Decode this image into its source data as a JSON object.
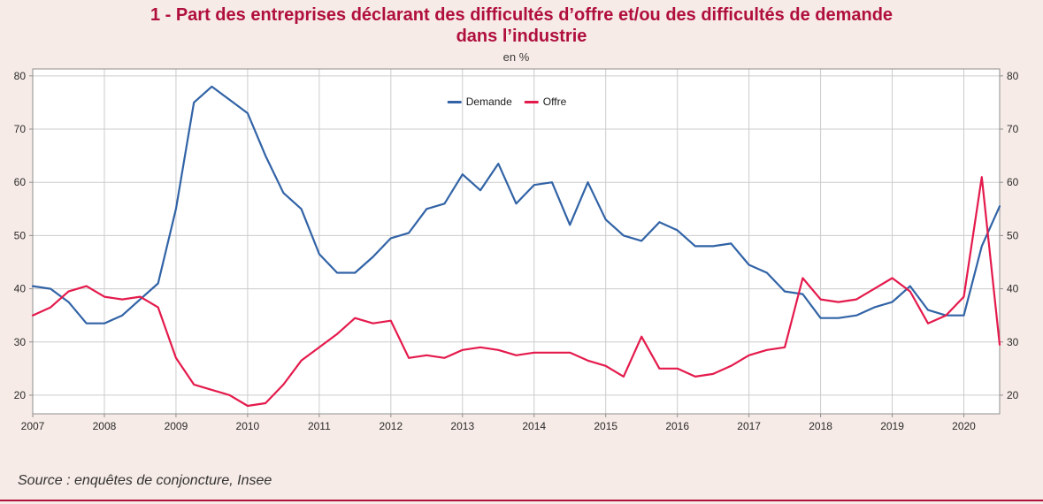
{
  "page": {
    "title_line1": "1 - Part des entreprises déclarant des difficultés d’offre et/ou des difficultés de demande",
    "title_line2": "dans l’industrie",
    "unit_label": "en %",
    "source": "Source : enquêtes de conjoncture, Insee"
  },
  "colors": {
    "background": "#f6ebe6",
    "title": "#b00f3c",
    "plot_background": "#ffffff",
    "grid": "#cccccc",
    "axis": "#8f8f8f",
    "tick_text": "#2b2b2b",
    "demande": "#3163a6",
    "offre": "#e41a4c",
    "bottom_rule": "#b00f3c"
  },
  "chart_data": {
    "type": "line",
    "title": "1 - Part des entreprises déclarant des difficultés d’offre et/ou des difficultés de demande dans l’industrie",
    "unit": "en %",
    "grid": true,
    "legend_position": "top-center-inside",
    "xlim": [
      2007,
      2020.5
    ],
    "ylim": [
      16.5,
      81.3
    ],
    "x_ticks": [
      2007,
      2008,
      2009,
      2010,
      2011,
      2012,
      2013,
      2014,
      2015,
      2016,
      2017,
      2018,
      2019,
      2020
    ],
    "y_ticks": [
      20,
      30,
      40,
      50,
      60,
      70,
      80
    ],
    "x_start": 2007.0,
    "x_step": 0.25,
    "series": [
      {
        "name": "Demande",
        "color": "#3163a6",
        "values": [
          40.5,
          40,
          37.5,
          33.5,
          33.5,
          35,
          38,
          41,
          55,
          75,
          78,
          75.5,
          73,
          65,
          58,
          55,
          46.5,
          43,
          43,
          46,
          49.5,
          50.5,
          55,
          56,
          61.5,
          58.5,
          63.5,
          56,
          59.5,
          60,
          52,
          60,
          53,
          50,
          49,
          52.5,
          51,
          48,
          48,
          48.5,
          44.5,
          43,
          39.5,
          39,
          34.5,
          34.5,
          35,
          36.5,
          37.5,
          40.5,
          36,
          35,
          35,
          48,
          55.5
        ]
      },
      {
        "name": "Offre",
        "color": "#e41a4c",
        "values": [
          35,
          36.5,
          39.5,
          40.5,
          38.5,
          38,
          38.5,
          36.5,
          27,
          22,
          21,
          20,
          18,
          18.5,
          22,
          26.5,
          29,
          31.5,
          34.5,
          33.5,
          34,
          27,
          27.5,
          27,
          28.5,
          29,
          28.5,
          27.5,
          28,
          28,
          28,
          26.5,
          25.5,
          23.5,
          31,
          25,
          25,
          23.5,
          24,
          25.5,
          27.5,
          28.5,
          29,
          42,
          38,
          37.5,
          38,
          40,
          42,
          39.5,
          33.5,
          35,
          38.5,
          61,
          29.5
        ]
      }
    ]
  }
}
